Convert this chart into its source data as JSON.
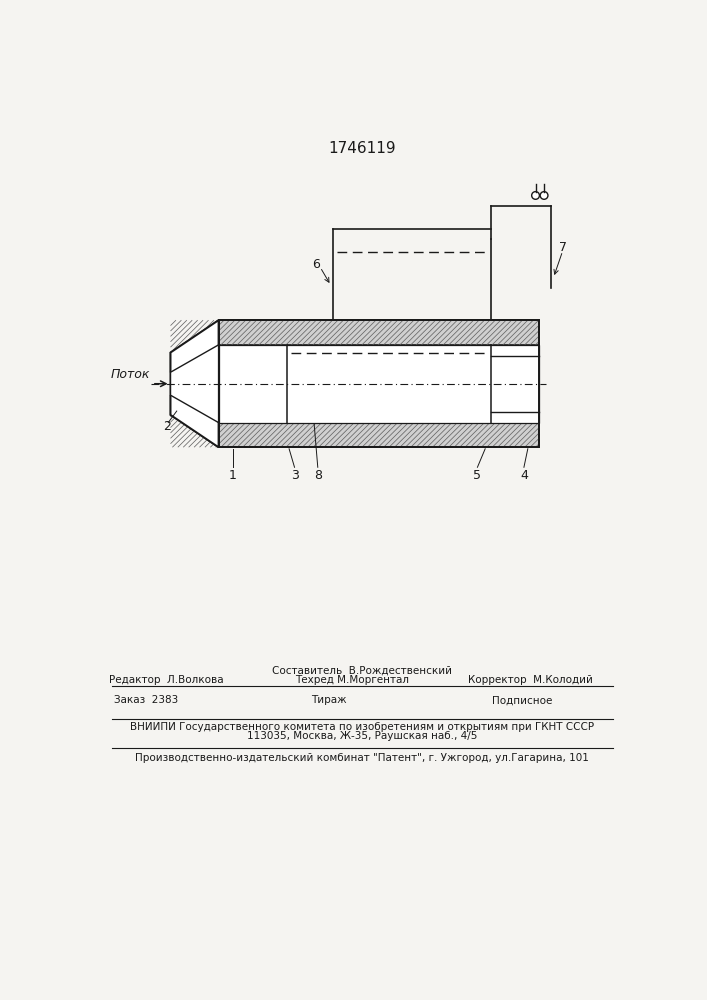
{
  "title": "1746119",
  "title_fontsize": 11,
  "background_color": "#f5f4f1",
  "line_color": "#1a1a1a",
  "hatch_color": "#888888",
  "hatch_bg": "#d8d8d8",
  "labels": {
    "potok": "Поток",
    "label_1": "1",
    "label_2": "2",
    "label_3": "3",
    "label_4": "4",
    "label_5": "5",
    "label_6": "6",
    "label_7": "7",
    "label_8": "8"
  },
  "footer": {
    "line1_center": "Составитель  В.Рождественский",
    "line2_left": "Редактор  Л.Волкова",
    "line2_center": "Техред М.Моргентал",
    "line2_right": "Корректор  М.Колодий",
    "line3_left": "Заказ  2383",
    "line3_center": "Тираж",
    "line3_right": "Подписное",
    "line4": "ВНИИПИ Государственного комитета по изобретениям и открытиям при ГКНТ СССР",
    "line5": "113035, Москва, Ж-35, Раушская наб., 4/5",
    "line6": "Производственно-издательский комбинат \"Патент\", г. Ужгород, ул.Гагарина, 101"
  }
}
